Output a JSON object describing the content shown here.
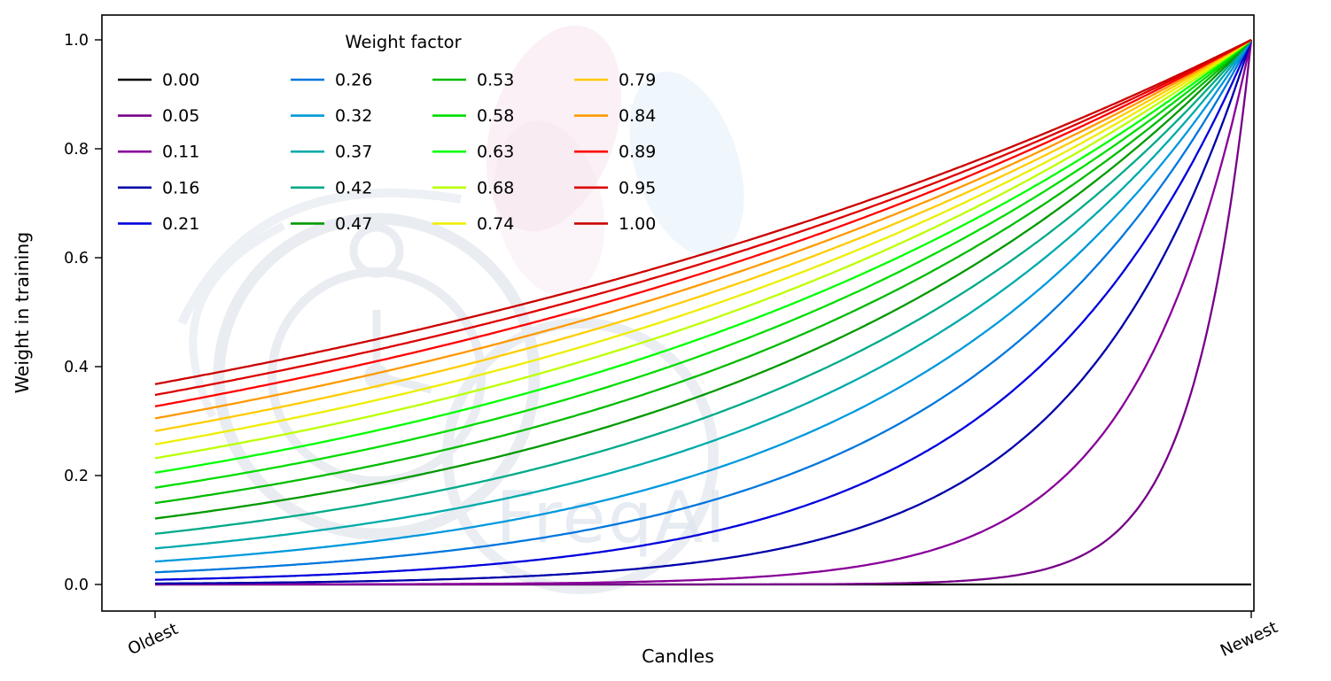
{
  "watermark": {
    "text": "FreqAI"
  },
  "chart_data": {
    "type": "line",
    "title": "",
    "xlabel": "Candles",
    "ylabel": "Weight in training",
    "x_range_labels": [
      "Oldest",
      "Newest"
    ],
    "ylim": [
      0,
      1
    ],
    "y_ticks": [
      0,
      0.2,
      0.4,
      0.6,
      0.8,
      1
    ],
    "grid": false,
    "legend_title": "Weight factor",
    "legend_layout": {
      "columns": 4,
      "rows": 5,
      "position": "upper-left",
      "order": "column-major"
    },
    "curve_formula": "weight(x) = exp((x - 1) / weight_factor) for x in [0,1] (Oldest to Newest); weight_factor = 0 gives a flat line at 0",
    "series": [
      {
        "label": "0.00",
        "weight_factor": 0,
        "color": "#000000"
      },
      {
        "label": "0.05",
        "weight_factor": 0.0526,
        "color": "#770088"
      },
      {
        "label": "0.11",
        "weight_factor": 0.1053,
        "color": "#880099"
      },
      {
        "label": "0.16",
        "weight_factor": 0.1579,
        "color": "#0000aa"
      },
      {
        "label": "0.21",
        "weight_factor": 0.2105,
        "color": "#0000dd"
      },
      {
        "label": "0.26",
        "weight_factor": 0.2632,
        "color": "#0077dd"
      },
      {
        "label": "0.32",
        "weight_factor": 0.3158,
        "color": "#0099dd"
      },
      {
        "label": "0.37",
        "weight_factor": 0.3684,
        "color": "#00aaaa"
      },
      {
        "label": "0.42",
        "weight_factor": 0.4211,
        "color": "#00aa88"
      },
      {
        "label": "0.47",
        "weight_factor": 0.4737,
        "color": "#009900"
      },
      {
        "label": "0.53",
        "weight_factor": 0.5263,
        "color": "#00bb00"
      },
      {
        "label": "0.58",
        "weight_factor": 0.5789,
        "color": "#00dd00"
      },
      {
        "label": "0.63",
        "weight_factor": 0.6316,
        "color": "#00ff00"
      },
      {
        "label": "0.68",
        "weight_factor": 0.6842,
        "color": "#bbff00"
      },
      {
        "label": "0.74",
        "weight_factor": 0.7368,
        "color": "#eeee00"
      },
      {
        "label": "0.79",
        "weight_factor": 0.7895,
        "color": "#ffcc00"
      },
      {
        "label": "0.84",
        "weight_factor": 0.8421,
        "color": "#ff9900"
      },
      {
        "label": "0.89",
        "weight_factor": 0.8947,
        "color": "#ff0000"
      },
      {
        "label": "0.95",
        "weight_factor": 0.9474,
        "color": "#dd0000"
      },
      {
        "label": "1.00",
        "weight_factor": 1,
        "color": "#cc0000"
      }
    ]
  }
}
